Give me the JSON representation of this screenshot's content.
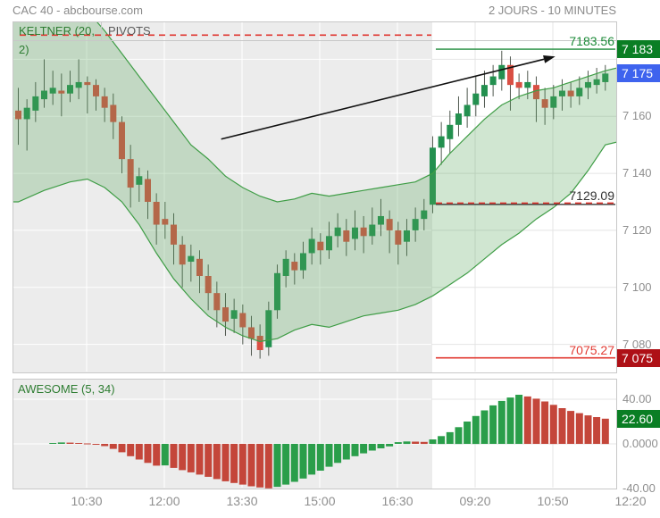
{
  "header": {
    "title": "CAC 40 - abcbourse.com",
    "timeframe": "2 JOURS - 10 MINUTES"
  },
  "tabs": {
    "keltner": "KELTNER (20, 2)",
    "pivots": "PIVOTS"
  },
  "oscillator_label": "AWESOME (5, 34)",
  "price_axis": {
    "labels": [
      "7 160",
      "7 140",
      "7 120",
      "7 100",
      "7 080"
    ],
    "prices": [
      7160,
      7140,
      7120,
      7100,
      7080
    ]
  },
  "ao_axis": {
    "labels": [
      "40.00",
      "0.0000",
      "-40.00"
    ],
    "values": [
      40,
      0,
      -40
    ]
  },
  "x_axis": {
    "labels": [
      "10:30",
      "12:00",
      "13:30",
      "15:00",
      "16:30",
      "09:20",
      "10:50",
      "12:20"
    ]
  },
  "badges": {
    "resistance": {
      "text": "7 183",
      "color": "#0a7e24",
      "price": 7183.56
    },
    "last": {
      "text": "7 175",
      "color": "#3e63ee",
      "price": 7175
    },
    "support": {
      "text": "7 075",
      "color": "#ae1016",
      "price": 7075.27
    },
    "ao": {
      "text": "22.60",
      "color": "#0a7e24",
      "value": 22.6
    }
  },
  "colors": {
    "candle_up": "#23904f",
    "candle_down": "#d94f43",
    "band_line": "#3f9d46",
    "band_fill": "rgba(86,166,91,0.28)",
    "ao_up": "#2a9e4a",
    "ao_down": "#c4463a",
    "session_day1": "#ececec",
    "grid_on_gray": "#ffffff",
    "grid_on_white": "#e4e4e4",
    "dash_red": "#e0342e",
    "pivot_black": "#222222",
    "res_green": "#1c8a38",
    "sup_red": "#e23b33"
  },
  "chart_data": [
    {
      "type": "candlestick",
      "title": "CAC 40",
      "timeframe": "10 minutes",
      "span": "2 jours",
      "x_tick_labels": [
        "10:30",
        "12:00",
        "13:30",
        "15:00",
        "16:30",
        "09:20",
        "10:50",
        "12:20"
      ],
      "y_ticks": [
        7080,
        7100,
        7120,
        7140,
        7160,
        7180
      ],
      "ylim": [
        7070,
        7193
      ],
      "day_split_index": 48,
      "last_price": 7175,
      "candles_ohlc": [
        [
          7162,
          7170,
          7150,
          7159
        ],
        [
          7159,
          7166,
          7148,
          7163
        ],
        [
          7162,
          7172,
          7158,
          7167
        ],
        [
          7166,
          7180,
          7163,
          7169
        ],
        [
          7168,
          7176,
          7164,
          7170
        ],
        [
          7169,
          7175,
          7160,
          7168
        ],
        [
          7168,
          7176,
          7165,
          7171
        ],
        [
          7170,
          7180,
          7166,
          7172
        ],
        [
          7172,
          7174,
          7161,
          7171
        ],
        [
          7171,
          7173,
          7162,
          7167
        ],
        [
          7167,
          7170,
          7158,
          7163
        ],
        [
          7164,
          7168,
          7152,
          7158
        ],
        [
          7158,
          7160,
          7140,
          7145
        ],
        [
          7145,
          7150,
          7128,
          7135
        ],
        [
          7136,
          7142,
          7130,
          7139
        ],
        [
          7138,
          7141,
          7124,
          7130
        ],
        [
          7130,
          7133,
          7115,
          7122
        ],
        [
          7124,
          7130,
          7117,
          7122
        ],
        [
          7122,
          7126,
          7108,
          7115
        ],
        [
          7115,
          7118,
          7100,
          7108
        ],
        [
          7109,
          7115,
          7102,
          7111
        ],
        [
          7110,
          7113,
          7098,
          7104
        ],
        [
          7104,
          7108,
          7092,
          7098
        ],
        [
          7098,
          7102,
          7086,
          7092
        ],
        [
          7093,
          7098,
          7083,
          7088
        ],
        [
          7089,
          7096,
          7084,
          7092
        ],
        [
          7091,
          7094,
          7080,
          7086
        ],
        [
          7086,
          7090,
          7076,
          7082
        ],
        [
          7083,
          7087,
          7075,
          7078
        ],
        [
          7079,
          7095,
          7076,
          7092
        ],
        [
          7092,
          7108,
          7089,
          7105
        ],
        [
          7104,
          7113,
          7100,
          7110
        ],
        [
          7109,
          7112,
          7101,
          7106
        ],
        [
          7106,
          7116,
          7103,
          7112
        ],
        [
          7112,
          7121,
          7108,
          7117
        ],
        [
          7116,
          7119,
          7108,
          7113
        ],
        [
          7113,
          7123,
          7110,
          7118
        ],
        [
          7118,
          7126,
          7114,
          7121
        ],
        [
          7120,
          7124,
          7111,
          7116
        ],
        [
          7117,
          7127,
          7113,
          7121
        ],
        [
          7121,
          7125,
          7112,
          7118
        ],
        [
          7118,
          7128,
          7115,
          7122
        ],
        [
          7122,
          7131,
          7118,
          7125
        ],
        [
          7124,
          7127,
          7112,
          7120
        ],
        [
          7120,
          7123,
          7108,
          7115
        ],
        [
          7116,
          7124,
          7111,
          7120
        ],
        [
          7120,
          7128,
          7116,
          7124
        ],
        [
          7124,
          7131,
          7120,
          7127
        ],
        [
          7129,
          7153,
          7126,
          7149
        ],
        [
          7149,
          7158,
          7143,
          7153
        ],
        [
          7152,
          7162,
          7147,
          7157
        ],
        [
          7157,
          7167,
          7153,
          7161
        ],
        [
          7160,
          7170,
          7156,
          7164
        ],
        [
          7164,
          7174,
          7160,
          7168
        ],
        [
          7167,
          7176,
          7163,
          7171
        ],
        [
          7171,
          7178,
          7167,
          7174
        ],
        [
          7173,
          7183,
          7169,
          7178
        ],
        [
          7178,
          7181,
          7162,
          7171
        ],
        [
          7172,
          7175,
          7166,
          7170
        ],
        [
          7170,
          7176,
          7166,
          7172
        ],
        [
          7171,
          7174,
          7158,
          7166
        ],
        [
          7166,
          7170,
          7157,
          7163
        ],
        [
          7163,
          7171,
          7159,
          7167
        ],
        [
          7167,
          7173,
          7162,
          7169
        ],
        [
          7169,
          7172,
          7163,
          7167
        ],
        [
          7167,
          7174,
          7164,
          7170
        ],
        [
          7170,
          7176,
          7166,
          7172
        ],
        [
          7171,
          7177,
          7168,
          7173
        ],
        [
          7172,
          7178,
          7169,
          7175
        ]
      ],
      "keltner_upper": [
        [
          0,
          7210
        ],
        [
          4,
          7204
        ],
        [
          8,
          7197
        ],
        [
          10,
          7190
        ],
        [
          12,
          7182
        ],
        [
          14,
          7174
        ],
        [
          16,
          7166
        ],
        [
          18,
          7158
        ],
        [
          20,
          7150
        ],
        [
          22,
          7145
        ],
        [
          24,
          7139
        ],
        [
          26,
          7135
        ],
        [
          28,
          7132
        ],
        [
          30,
          7130
        ],
        [
          32,
          7131
        ],
        [
          34,
          7133
        ],
        [
          36,
          7132
        ],
        [
          38,
          7133
        ],
        [
          40,
          7134
        ],
        [
          42,
          7135
        ],
        [
          44,
          7136
        ],
        [
          46,
          7137
        ],
        [
          48,
          7140
        ],
        [
          50,
          7147
        ],
        [
          52,
          7153
        ],
        [
          54,
          7159
        ],
        [
          56,
          7164
        ],
        [
          58,
          7167
        ],
        [
          60,
          7169
        ],
        [
          62,
          7170
        ],
        [
          64,
          7172
        ],
        [
          66,
          7174
        ],
        [
          68,
          7176
        ]
      ],
      "keltner_lower": [
        [
          0,
          7130
        ],
        [
          3,
          7134
        ],
        [
          6,
          7137
        ],
        [
          8,
          7138
        ],
        [
          10,
          7135
        ],
        [
          12,
          7130
        ],
        [
          14,
          7122
        ],
        [
          16,
          7112
        ],
        [
          18,
          7103
        ],
        [
          20,
          7096
        ],
        [
          22,
          7090
        ],
        [
          24,
          7086
        ],
        [
          26,
          7083
        ],
        [
          28,
          7081
        ],
        [
          30,
          7082
        ],
        [
          32,
          7085
        ],
        [
          34,
          7087
        ],
        [
          36,
          7086
        ],
        [
          38,
          7088
        ],
        [
          40,
          7090
        ],
        [
          42,
          7091
        ],
        [
          44,
          7092
        ],
        [
          46,
          7094
        ],
        [
          48,
          7097
        ],
        [
          50,
          7101
        ],
        [
          52,
          7105
        ],
        [
          54,
          7110
        ],
        [
          56,
          7115
        ],
        [
          58,
          7119
        ],
        [
          60,
          7124
        ],
        [
          62,
          7128
        ],
        [
          64,
          7133
        ],
        [
          66,
          7141
        ],
        [
          68,
          7150
        ]
      ],
      "pivot_lines": [
        {
          "name": "day1-resistance-dashed",
          "price": 7188.5,
          "label": "",
          "style": "dashed",
          "span": "day1"
        },
        {
          "name": "day2-resistance",
          "price": 7183.56,
          "label": "7183.56",
          "style": "solid",
          "span": "day2"
        },
        {
          "name": "day2-pivot",
          "price": 7129.09,
          "label": "7129.09",
          "style": "solid-with-red-dash",
          "span": "day2"
        },
        {
          "name": "day2-support",
          "price": 7075.27,
          "label": "7075.27",
          "style": "solid",
          "span": "day2"
        }
      ],
      "annotations": {
        "trend_arrow": {
          "from_bar": 23.5,
          "from_price": 7152,
          "to_bar": 62.2,
          "to_price": 7181
        }
      }
    },
    {
      "type": "bar",
      "title": "AWESOME (5, 34)",
      "y_ticks": [
        40,
        0,
        -40
      ],
      "ylim": [
        -58,
        58
      ],
      "last_value": 22.6,
      "values": [
        null,
        null,
        null,
        null,
        0.8,
        1.3,
        1.1,
        0.8,
        0.4,
        -0.5,
        -2,
        -4.5,
        -7.5,
        -11,
        -14,
        -17,
        -19.5,
        -19.3,
        -21.5,
        -23.5,
        -25.5,
        -27.5,
        -29.5,
        -31.5,
        -33.5,
        -35,
        -36.5,
        -38,
        -39,
        -39.8,
        -38.5,
        -36.5,
        -34,
        -31,
        -27.5,
        -24,
        -20.5,
        -17,
        -14,
        -11,
        -8.5,
        -6,
        -4,
        -2.2,
        1.5,
        2.2,
        2.0,
        1.8,
        4,
        7,
        10.5,
        15,
        20,
        25,
        30,
        34.5,
        38.5,
        41.5,
        44,
        42.5,
        40.5,
        38,
        35,
        32,
        29.5,
        27.5,
        25.5,
        24,
        22.6
      ]
    }
  ]
}
